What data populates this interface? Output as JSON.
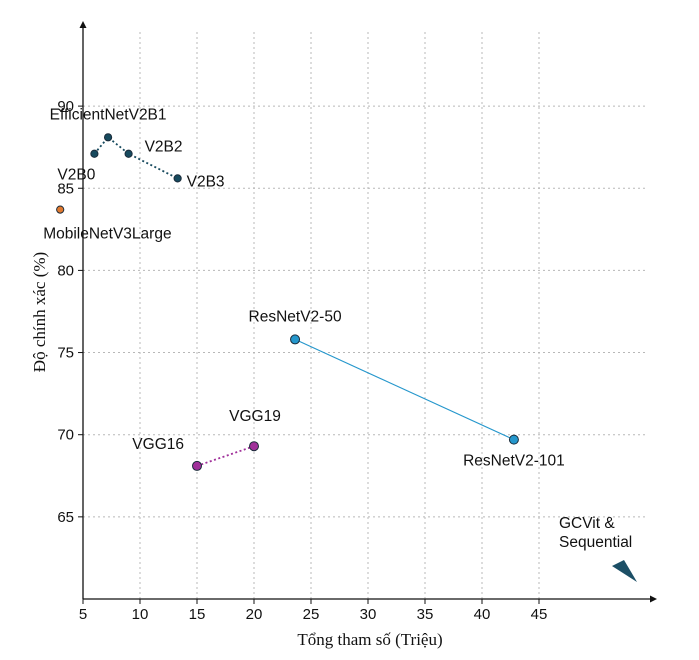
{
  "chart_data": {
    "type": "scatter",
    "xlabel": "Tổng tham số (Triệu)",
    "ylabel": "Độ chính xác (%)",
    "xlim": [
      -5,
      50
    ],
    "ylim": [
      60,
      95
    ],
    "xticks": [
      5,
      10,
      15,
      20,
      25,
      30,
      35,
      40,
      45
    ],
    "yticks": [
      65,
      70,
      75,
      80,
      85,
      90
    ],
    "grid": true,
    "series": [
      {
        "name": "EfficientNetV2",
        "color": "#174a5e",
        "linestyle": "dotted",
        "points": [
          {
            "label": "V2B0",
            "x": 6.0,
            "y": 87.1
          },
          {
            "label": "EfficientNetV2B1",
            "x": 7.2,
            "y": 88.1
          },
          {
            "label": "V2B2",
            "x": 9.0,
            "y": 87.1
          },
          {
            "label": "V2B3",
            "x": 13.3,
            "y": 85.6
          }
        ]
      },
      {
        "name": "MobileNetV3Large",
        "color": "#e0792f",
        "linestyle": "none",
        "points": [
          {
            "label": "MobileNetV3Large",
            "x": 3.0,
            "y": 83.7
          }
        ]
      },
      {
        "name": "ResNetV2",
        "color": "#2597cc",
        "linestyle": "solid",
        "points": [
          {
            "label": "ResNetV2-50",
            "x": 23.6,
            "y": 75.8
          },
          {
            "label": "ResNetV2-101",
            "x": 42.8,
            "y": 69.7
          }
        ]
      },
      {
        "name": "VGG",
        "color": "#a0309a",
        "linestyle": "dotted",
        "points": [
          {
            "label": "VGG16",
            "x": 15.0,
            "y": 68.1
          },
          {
            "label": "VGG19",
            "x": 20.0,
            "y": 69.3
          }
        ]
      }
    ],
    "annotations": [
      {
        "text": "GCVit &",
        "marker": "arrow",
        "color": "#1c4f66"
      },
      {
        "text": "Sequential"
      }
    ]
  }
}
